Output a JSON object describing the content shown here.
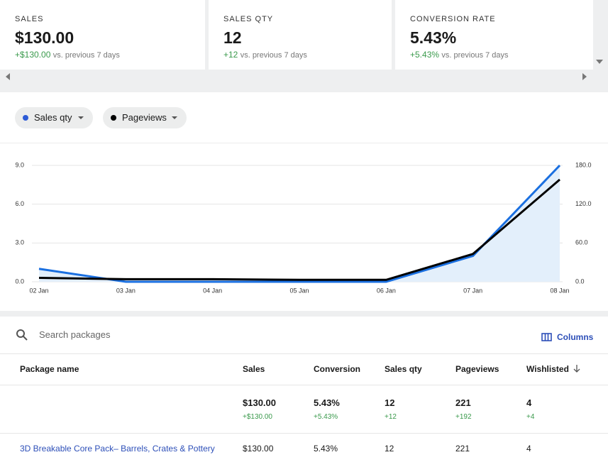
{
  "cards": [
    {
      "label": "SALES",
      "value": "$130.00",
      "change": "+$130.00",
      "note": "vs. previous 7 days"
    },
    {
      "label": "SALES QTY",
      "value": "12",
      "change": "+12",
      "note": "vs. previous 7 days"
    },
    {
      "label": "CONVERSION RATE",
      "value": "5.43%",
      "change": "+5.43%",
      "note": "vs. previous 7 days"
    }
  ],
  "chart_data": {
    "type": "line",
    "categories": [
      "02 Jan",
      "03 Jan",
      "04 Jan",
      "05 Jan",
      "06 Jan",
      "07 Jan",
      "08 Jan"
    ],
    "series": [
      {
        "name": "Sales qty",
        "color": "#1a6fe0",
        "area_color": "#e3effb",
        "values": [
          1,
          0,
          0,
          0,
          0,
          2,
          9
        ]
      },
      {
        "name": "Pageviews",
        "color": "#000000",
        "axis": "y2",
        "values": [
          6,
          4,
          4,
          3,
          3,
          43,
          158
        ]
      }
    ],
    "ylim": [
      0,
      9
    ],
    "yticks": [
      {
        "value": 0,
        "label": "0.0"
      },
      {
        "value": 3,
        "label": "3.0"
      },
      {
        "value": 6,
        "label": "6.0"
      },
      {
        "value": 9,
        "label": "9.0"
      }
    ],
    "y2lim": [
      0,
      180
    ],
    "y2ticks": [
      {
        "value": 0,
        "label": "0.0"
      },
      {
        "value": 60,
        "label": "60.0"
      },
      {
        "value": 120,
        "label": "120.0"
      },
      {
        "value": 180,
        "label": "180.0"
      }
    ],
    "grid": true
  },
  "search": {
    "placeholder": "Search packages"
  },
  "columns_button": "Columns",
  "table": {
    "headers": [
      "Package name",
      "Sales",
      "Conversion",
      "Sales qty",
      "Pageviews",
      "Wishlisted"
    ],
    "totals": [
      {
        "value": "$130.00",
        "change": "+$130.00"
      },
      {
        "value": "5.43%",
        "change": "+5.43%"
      },
      {
        "value": "12",
        "change": "+12"
      },
      {
        "value": "221",
        "change": "+192"
      },
      {
        "value": "4",
        "change": "+4"
      }
    ],
    "rows": [
      [
        "3D Breakable Core Pack– Barrels, Crates & Pottery",
        "$130.00",
        "5.43%",
        "12",
        "221",
        "4"
      ]
    ]
  }
}
